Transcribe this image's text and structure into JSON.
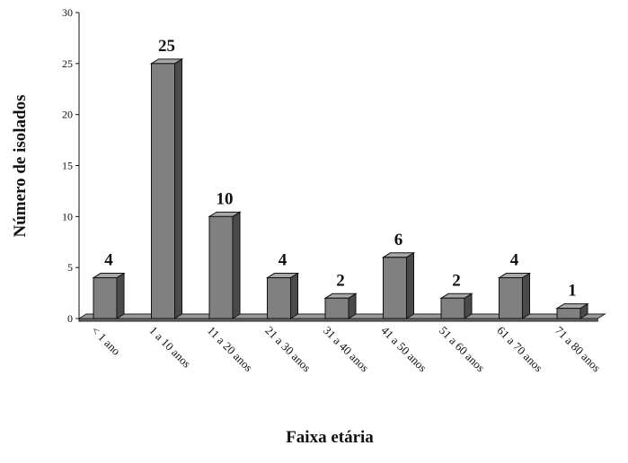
{
  "chart_data": {
    "type": "bar",
    "categories": [
      "< 1 ano",
      "1 a 10 anos",
      "11 a 20 anos",
      "21 a 30 anos",
      "31 a 40 anos",
      "41 a 50 anos",
      "51 a 60 anos",
      "61 a 70 anos",
      "71 a 80 anos"
    ],
    "values": [
      4,
      25,
      10,
      4,
      2,
      6,
      2,
      4,
      1
    ],
    "color": "#808080",
    "ylim": [
      0,
      30
    ],
    "yticks": [
      0,
      5,
      10,
      15,
      20,
      25,
      30
    ],
    "x_label": "Faixa etária",
    "y_label": "Número de isolados"
  }
}
